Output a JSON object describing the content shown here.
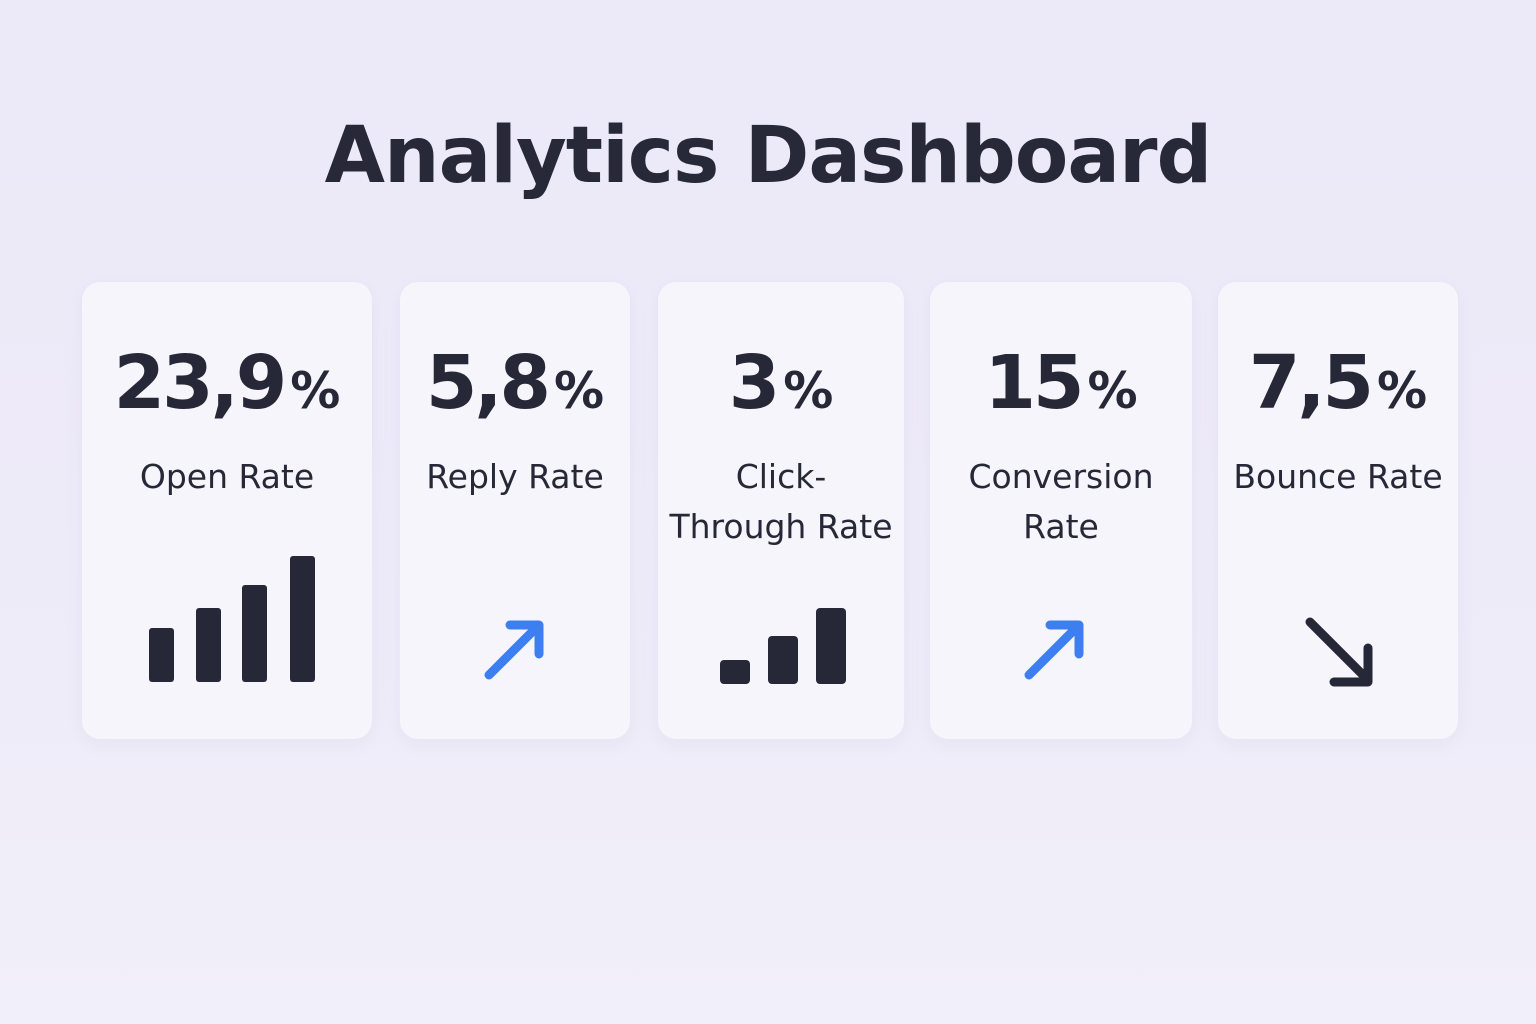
{
  "page": {
    "title": "Analytics Dashboard"
  },
  "colors": {
    "background": "#ece9f8",
    "card": "#f6f5fb",
    "text": "#262837",
    "accent_blue": "#3d7ff0",
    "dark_icon": "#262837"
  },
  "metrics": [
    {
      "value": "23,9",
      "unit": "%",
      "label": "Open Rate",
      "icon": "bar-chart-icon",
      "bars_relative": [
        0.42,
        0.58,
        0.76,
        1.0
      ]
    },
    {
      "value": "5,8",
      "unit": "%",
      "label": "Reply Rate",
      "icon": "arrow-up-right-icon",
      "trend": "up"
    },
    {
      "value": "3",
      "unit": "%",
      "label": "Click-\nThrough Rate",
      "icon": "bar-chart-icon",
      "bars_relative": [
        0.28,
        0.62,
        1.0
      ]
    },
    {
      "value": "15",
      "unit": "%",
      "label": "Conversion\nRate",
      "icon": "arrow-up-right-icon",
      "trend": "up"
    },
    {
      "value": "7,5",
      "unit": "%",
      "label": "Bounce Rate",
      "icon": "arrow-down-right-icon",
      "trend": "down"
    }
  ]
}
